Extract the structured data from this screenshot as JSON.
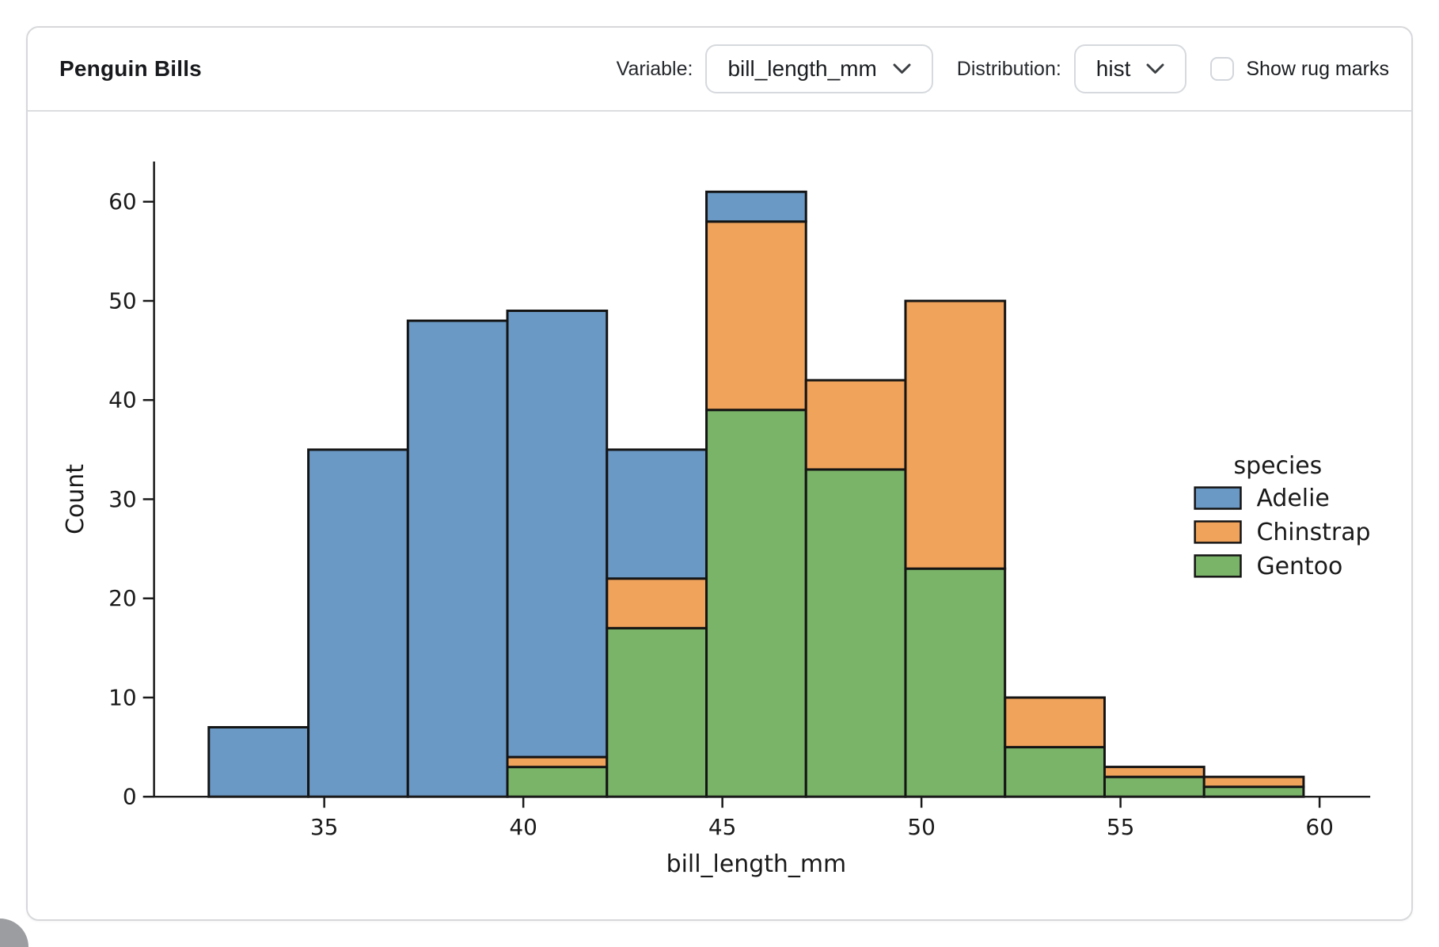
{
  "header": {
    "title": "Penguin Bills",
    "variable_label": "Variable:",
    "variable_value": "bill_length_mm",
    "distribution_label": "Distribution:",
    "distribution_value": "hist",
    "rug_label": "Show rug marks",
    "rug_checked": false
  },
  "chart_data": {
    "type": "bar",
    "subtype": "stacked-histogram",
    "title": "",
    "xlabel": "bill_length_mm",
    "ylabel": "Count",
    "bin_edges": [
      32.1,
      34.6,
      37.1,
      39.6,
      42.1,
      44.6,
      47.1,
      49.6,
      52.1,
      54.6,
      57.1,
      59.6
    ],
    "series": [
      {
        "name": "Adelie",
        "color": "#6a99c5",
        "values": [
          7,
          35,
          48,
          45,
          13,
          3,
          0,
          0,
          0,
          0,
          0
        ]
      },
      {
        "name": "Chinstrap",
        "color": "#f0a35a",
        "values": [
          0,
          0,
          0,
          1,
          5,
          19,
          9,
          27,
          5,
          1,
          1
        ]
      },
      {
        "name": "Gentoo",
        "color": "#7ab469",
        "values": [
          0,
          0,
          0,
          3,
          17,
          39,
          33,
          23,
          5,
          2,
          1
        ]
      }
    ],
    "stack_order_bottom_to_top": [
      "Gentoo",
      "Chinstrap",
      "Adelie"
    ],
    "bar_totals": [
      7,
      35,
      48,
      49,
      35,
      61,
      42,
      50,
      10,
      3,
      2
    ],
    "x_ticks": [
      35,
      40,
      45,
      50,
      55,
      60
    ],
    "y_ticks": [
      0,
      10,
      20,
      30,
      40,
      50,
      60
    ],
    "xlim": [
      30.725,
      60.975
    ],
    "ylim": [
      0,
      64.05
    ],
    "legend_title": "species",
    "legend_position": "right",
    "grid": false,
    "bar_edge_color": "#141414"
  }
}
